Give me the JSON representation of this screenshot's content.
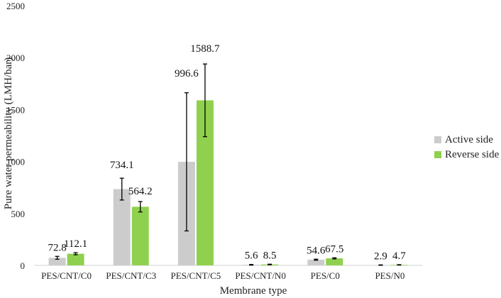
{
  "chart_data": {
    "type": "bar",
    "xlabel": "Membrane type",
    "ylabel": "Pure water permeability (LMH/bar)",
    "ylim": [
      0,
      2500
    ],
    "yticks": [
      "0",
      "500",
      "1000",
      "1500",
      "2000",
      "2500"
    ],
    "grid": false,
    "legend_position": "right",
    "categories": [
      "PES/CNT/C0",
      "PES/CNT/C3",
      "PES/CNT/C5",
      "PES/CNT/N0",
      "PES/C0",
      "PES/N0"
    ],
    "series": [
      {
        "name": "Active side",
        "color": "#cccccc",
        "values": [
          72.8,
          734.1,
          996.6,
          5.6,
          54.6,
          2.9
        ],
        "labels": [
          "72.8",
          "734.1",
          "996.6",
          "5.6",
          "54.6",
          "2.9"
        ],
        "error": [
          14,
          105,
          665,
          3,
          5,
          2
        ]
      },
      {
        "name": "Reverse side",
        "color": "#8fd14f",
        "values": [
          112.1,
          564.2,
          1588.7,
          8.5,
          67.5,
          4.7
        ],
        "labels": [
          "112.1",
          "564.2",
          "1588.7",
          "8.5",
          "67.5",
          "4.7"
        ],
        "error": [
          10,
          50,
          350,
          3,
          5,
          2
        ]
      }
    ]
  }
}
